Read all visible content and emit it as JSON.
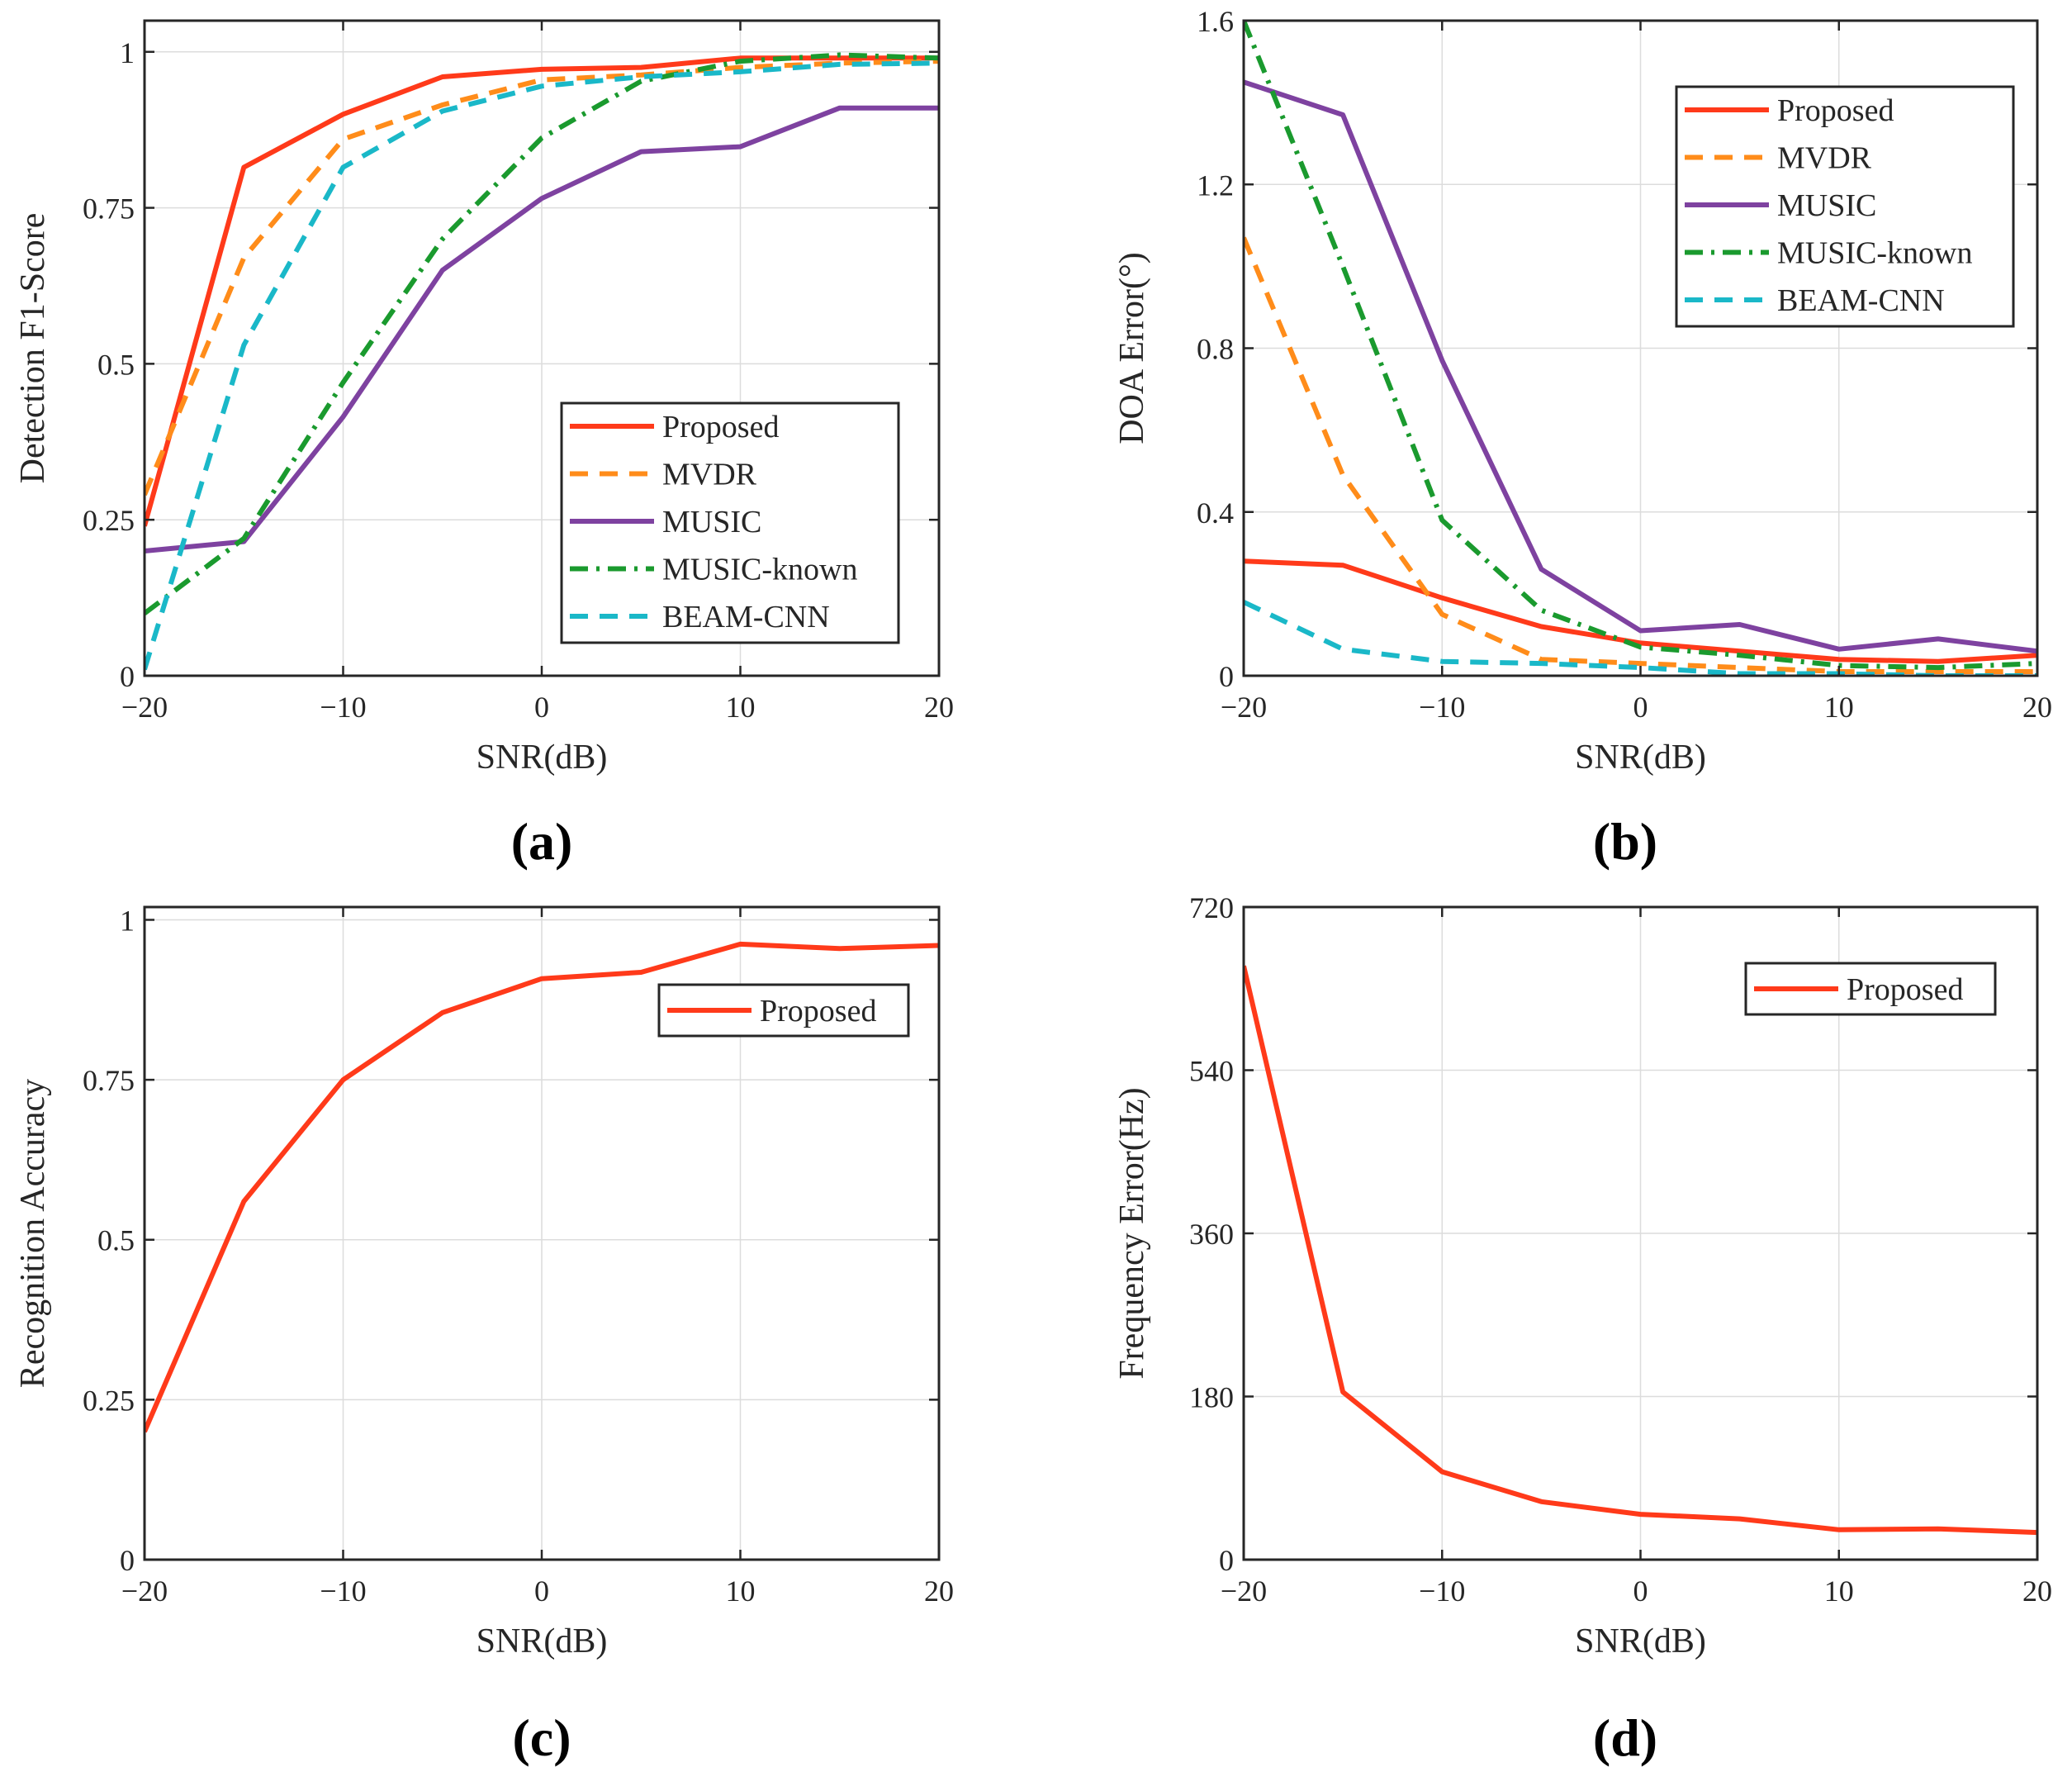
{
  "figure": {
    "panel_labels": [
      "(a)",
      "(b)",
      "(c)",
      "(d)"
    ]
  },
  "chart_data": [
    {
      "panel": "(a)",
      "type": "line",
      "xlabel": "SNR(dB)",
      "ylabel": "Detection F1-Score",
      "xlim": [
        -20,
        20
      ],
      "ylim": [
        0,
        1.05
      ],
      "xticks": [
        -20,
        -10,
        0,
        10,
        20
      ],
      "xtick_labels": [
        "−20",
        "−10",
        "0",
        "10",
        "20"
      ],
      "yticks": [
        0,
        0.25,
        0.5,
        0.75,
        1
      ],
      "ytick_labels": [
        "0",
        "0.25",
        "0.5",
        "0.75",
        "1"
      ],
      "grid": true,
      "legend_position": "bottom-right",
      "x": [
        -20,
        -15,
        -10,
        -5,
        0,
        5,
        10,
        15,
        20
      ],
      "series": [
        {
          "name": "Proposed",
          "color": "#ff3a1a",
          "dash": "solid",
          "values": [
            0.24,
            0.815,
            0.9,
            0.96,
            0.972,
            0.975,
            0.99,
            0.99,
            0.99
          ]
        },
        {
          "name": "MVDR",
          "color": "#ff8c1a",
          "dash": "dashed",
          "values": [
            0.29,
            0.67,
            0.86,
            0.915,
            0.955,
            0.963,
            0.975,
            0.982,
            0.985
          ]
        },
        {
          "name": "MUSIC",
          "color": "#7e42a0",
          "dash": "solid",
          "values": [
            0.2,
            0.215,
            0.415,
            0.65,
            0.765,
            0.84,
            0.848,
            0.91,
            0.91
          ]
        },
        {
          "name": "MUSIC-known",
          "color": "#1a9a2e",
          "dash": "dashdot",
          "values": [
            0.1,
            0.22,
            0.47,
            0.7,
            0.862,
            0.953,
            0.985,
            0.995,
            0.99
          ]
        },
        {
          "name": "BEAM-CNN",
          "color": "#1ab8c8",
          "dash": "dashed",
          "values": [
            0.01,
            0.53,
            0.815,
            0.905,
            0.945,
            0.96,
            0.968,
            0.98,
            0.982
          ]
        }
      ]
    },
    {
      "panel": "(b)",
      "type": "line",
      "xlabel": "SNR(dB)",
      "ylabel": "DOA Error(°)",
      "xlim": [
        -20,
        20
      ],
      "ylim": [
        0,
        1.6
      ],
      "xticks": [
        -20,
        -10,
        0,
        10,
        20
      ],
      "xtick_labels": [
        "−20",
        "−10",
        "0",
        "10",
        "20"
      ],
      "yticks": [
        0,
        0.4,
        0.8,
        1.2,
        1.6
      ],
      "ytick_labels": [
        "0",
        "0.4",
        "0.8",
        "1.2",
        "1.6"
      ],
      "grid": true,
      "legend_position": "top-right",
      "x": [
        -20,
        -15,
        -10,
        -5,
        0,
        5,
        10,
        15,
        20
      ],
      "series": [
        {
          "name": "Proposed",
          "color": "#ff3a1a",
          "dash": "solid",
          "values": [
            0.28,
            0.27,
            0.19,
            0.12,
            0.08,
            0.06,
            0.04,
            0.035,
            0.05
          ]
        },
        {
          "name": "MVDR",
          "color": "#ff8c1a",
          "dash": "dashed",
          "values": [
            1.07,
            0.49,
            0.15,
            0.04,
            0.03,
            0.02,
            0.01,
            0.01,
            0.01
          ]
        },
        {
          "name": "MUSIC",
          "color": "#7e42a0",
          "dash": "solid",
          "values": [
            1.45,
            1.37,
            0.77,
            0.26,
            0.11,
            0.125,
            0.065,
            0.09,
            0.06
          ]
        },
        {
          "name": "MUSIC-known",
          "color": "#1a9a2e",
          "dash": "dashdot",
          "values": [
            1.6,
            1.0,
            0.38,
            0.16,
            0.07,
            0.05,
            0.025,
            0.02,
            0.03
          ]
        },
        {
          "name": "BEAM-CNN",
          "color": "#1ab8c8",
          "dash": "dashed",
          "values": [
            0.18,
            0.065,
            0.035,
            0.03,
            0.02,
            0.005,
            0.005,
            0.0,
            0.0
          ]
        }
      ]
    },
    {
      "panel": "(c)",
      "type": "line",
      "xlabel": "SNR(dB)",
      "ylabel": "Recognition Accuracy",
      "xlim": [
        -20,
        20
      ],
      "ylim": [
        0,
        1.02
      ],
      "xticks": [
        -20,
        -10,
        0,
        10,
        20
      ],
      "xtick_labels": [
        "−20",
        "−10",
        "0",
        "10",
        "20"
      ],
      "yticks": [
        0,
        0.25,
        0.5,
        0.75,
        1
      ],
      "ytick_labels": [
        "0",
        "0.25",
        "0.5",
        "0.75",
        "1"
      ],
      "grid": true,
      "legend_position": "top-right",
      "x": [
        -20,
        -15,
        -10,
        -5,
        0,
        5,
        10,
        15,
        20
      ],
      "series": [
        {
          "name": "Proposed",
          "color": "#ff3a1a",
          "dash": "solid",
          "values": [
            0.2,
            0.56,
            0.75,
            0.855,
            0.908,
            0.918,
            0.962,
            0.955,
            0.96
          ]
        }
      ]
    },
    {
      "panel": "(d)",
      "type": "line",
      "xlabel": "SNR(dB)",
      "ylabel": "Frequency Error(Hz)",
      "xlim": [
        -20,
        20
      ],
      "ylim": [
        0,
        720
      ],
      "xticks": [
        -20,
        -10,
        0,
        10,
        20
      ],
      "xtick_labels": [
        "−20",
        "−10",
        "0",
        "10",
        "20"
      ],
      "yticks": [
        0,
        180,
        360,
        540,
        720
      ],
      "ytick_labels": [
        "0",
        "180",
        "360",
        "540",
        "720"
      ],
      "grid": true,
      "legend_position": "top-right",
      "x": [
        -20,
        -15,
        -10,
        -5,
        0,
        5,
        10,
        15,
        20
      ],
      "series": [
        {
          "name": "Proposed",
          "color": "#ff3a1a",
          "dash": "solid",
          "values": [
            655,
            185,
            97,
            64,
            50,
            45,
            33,
            34,
            30
          ]
        }
      ]
    }
  ]
}
